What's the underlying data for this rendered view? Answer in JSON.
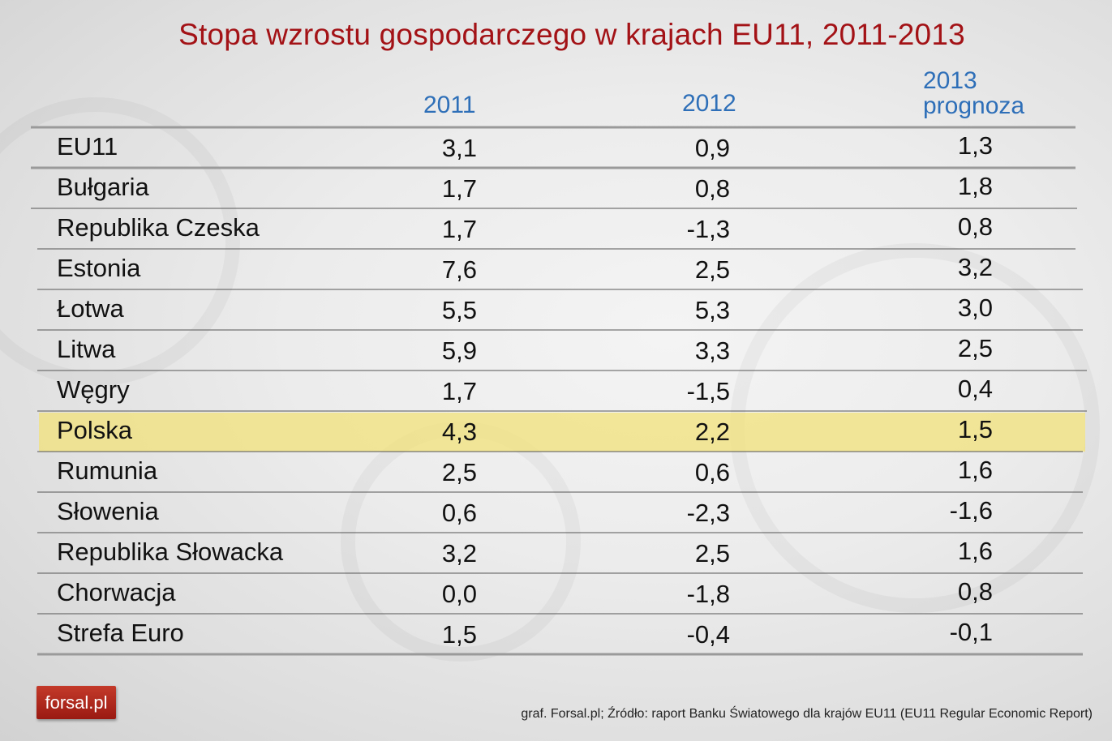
{
  "chart_data": {
    "type": "table",
    "title": "Stopa wzrostu gospodarczego w krajach EU11, 2011-2013",
    "columns": [
      "2011",
      "2012",
      "2013 prognoza"
    ],
    "column_header_lines": [
      [
        "2011"
      ],
      [
        "2012"
      ],
      [
        "2013",
        "prognoza"
      ]
    ],
    "rows": [
      {
        "label": "EU11",
        "values": [
          "3,1",
          "0,9",
          "1,3"
        ]
      },
      {
        "label": "Bułgaria",
        "values": [
          "1,7",
          "0,8",
          "1,8"
        ]
      },
      {
        "label": "Republika Czeska",
        "values": [
          "1,7",
          "-1,3",
          "0,8"
        ]
      },
      {
        "label": "Estonia",
        "values": [
          "7,6",
          "2,5",
          "3,2"
        ]
      },
      {
        "label": "Łotwa",
        "values": [
          "5,5",
          "5,3",
          "3,0"
        ]
      },
      {
        "label": "Litwa",
        "values": [
          "5,9",
          "3,3",
          "2,5"
        ]
      },
      {
        "label": "Węgry",
        "values": [
          "1,7",
          "-1,5",
          "0,4"
        ]
      },
      {
        "label": "Polska",
        "values": [
          "4,3",
          "2,2",
          "1,5"
        ],
        "highlight": true
      },
      {
        "label": "Rumunia",
        "values": [
          "2,5",
          "0,6",
          "1,6"
        ]
      },
      {
        "label": "Słowenia",
        "values": [
          "0,6",
          "-2,3",
          "-1,6"
        ]
      },
      {
        "label": "Republika Słowacka",
        "values": [
          "3,2",
          "2,5",
          "1,6"
        ]
      },
      {
        "label": "Chorwacja",
        "values": [
          "0,0",
          "-1,8",
          "0,8"
        ]
      },
      {
        "label": "Strefa Euro",
        "values": [
          "1,5",
          "-0,4",
          "-0,1"
        ]
      }
    ],
    "highlight_color": "#f2e27a",
    "header_color": "#2e6fb8",
    "title_color": "#a31216"
  },
  "logo": {
    "text": "forsal.pl"
  },
  "source": "graf. Forsal.pl; Źródło: raport Banku Światowego dla krajów EU11 (EU11 Regular Economic Report)"
}
